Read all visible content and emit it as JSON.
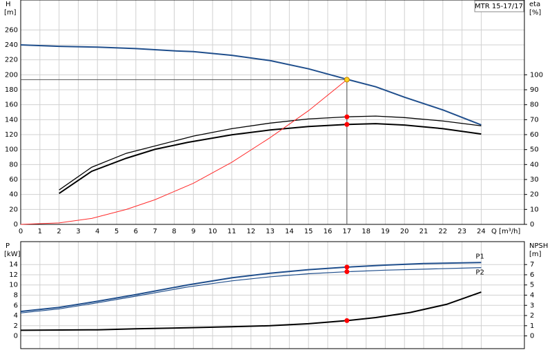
{
  "chart_data": [
    {
      "type": "line",
      "title": "MTR 15-17/17",
      "ylabel": "H",
      "ylabel_unit": "[m]",
      "y2label": "eta",
      "y2label_unit": "[%]",
      "xlabel": "Q [m³/h]",
      "xlim": [
        0,
        26.25
      ],
      "xticks": [
        0,
        1,
        2,
        3,
        4,
        5,
        6,
        7,
        8,
        9,
        10,
        11,
        12,
        13,
        14,
        15,
        16,
        17,
        18,
        19,
        20,
        21,
        22,
        23,
        24
      ],
      "ylim": [
        0,
        300
      ],
      "yticks": [
        0,
        20,
        40,
        60,
        80,
        100,
        120,
        140,
        160,
        180,
        200,
        220,
        240,
        260
      ],
      "y2lim": [
        0,
        150
      ],
      "y2ticks": [
        0,
        10,
        20,
        30,
        40,
        50,
        60,
        70,
        80,
        90,
        100
      ],
      "grid": true,
      "series": [
        {
          "color": "#1f4e8c",
          "width": 2,
          "x": [
            0,
            2,
            4,
            6,
            8,
            9,
            11,
            13,
            15,
            17,
            18.5,
            20,
            22,
            24
          ],
          "values": [
            240,
            238,
            237,
            235,
            232,
            231,
            226,
            219,
            208,
            194,
            184,
            170,
            153,
            133
          ]
        },
        {
          "color": "#000000",
          "width": 1.3,
          "axis": "y2",
          "x": [
            2,
            3.7,
            5.5,
            9,
            11,
            13,
            15,
            17,
            18.5,
            20,
            22,
            24
          ],
          "values": [
            23,
            38.2,
            47.5,
            59,
            64,
            67.7,
            70.5,
            71.9,
            72.4,
            71.4,
            69.1,
            65.9
          ]
        },
        {
          "color": "#000000",
          "width": 2,
          "axis": "y2",
          "x": [
            2,
            3.7,
            5.5,
            7,
            8.7,
            11,
            13,
            15,
            17,
            18.5,
            20,
            22,
            24
          ],
          "values": [
            20.7,
            35.5,
            44.2,
            50.2,
            54.8,
            59.9,
            63.1,
            65.4,
            66.8,
            67.3,
            66.4,
            64,
            60.4
          ]
        },
        {
          "color": "#ff2a2a",
          "width": 1,
          "x": [
            0,
            2,
            3.7,
            5.5,
            7,
            9,
            11,
            13,
            15,
            17
          ],
          "values": [
            0,
            2,
            8,
            20,
            33,
            55,
            83,
            116,
            152,
            193.5
          ]
        }
      ],
      "ref_lines": [
        {
          "x": 17,
          "value": 193.5
        }
      ],
      "points": [
        {
          "x": 17,
          "value": 193.5,
          "color": "#ffd21f"
        },
        {
          "x": 17,
          "value": 71.9,
          "axis": "y2",
          "color": "#ff0000"
        },
        {
          "x": 17,
          "value": 66.8,
          "axis": "y2",
          "color": "#ff0000"
        }
      ]
    },
    {
      "type": "line",
      "ylabel": "P",
      "ylabel_unit": "[kW]",
      "y2label": "NPSH",
      "y2label_unit": "[m]",
      "xlim": [
        0,
        26.25
      ],
      "xticks": [
        0,
        1,
        2,
        3,
        4,
        5,
        6,
        7,
        8,
        9,
        10,
        11,
        12,
        13,
        14,
        15,
        16,
        17,
        18,
        19,
        20,
        21,
        22,
        23,
        24
      ],
      "ylim": [
        -2.5,
        18.5
      ],
      "yticks": [
        0,
        2,
        4,
        6,
        8,
        10,
        12,
        14
      ],
      "y2lim": [
        -1.25,
        9.25
      ],
      "y2ticks": [
        0,
        1,
        2,
        3,
        4,
        5,
        6,
        7
      ],
      "grid": true,
      "series": [
        {
          "name": "P1",
          "color": "#1f4e8c",
          "width": 2,
          "x": [
            0,
            2,
            4,
            6,
            8.7,
            11,
            13,
            15,
            17,
            19,
            21,
            24
          ],
          "values": [
            4.8,
            5.6,
            6.8,
            8.1,
            10,
            11.4,
            12.3,
            13,
            13.5,
            13.9,
            14.2,
            14.4
          ]
        },
        {
          "name": "P2",
          "color": "#1f4e8c",
          "width": 1.2,
          "x": [
            0,
            2,
            4,
            6,
            8.7,
            11,
            13,
            15,
            17,
            19,
            21,
            24
          ],
          "values": [
            4.5,
            5.3,
            6.5,
            7.8,
            9.6,
            10.8,
            11.6,
            12.2,
            12.6,
            12.9,
            13.1,
            13.4
          ]
        },
        {
          "color": "#000000",
          "width": 2,
          "axis": "y2",
          "x": [
            0,
            4,
            6,
            8.7,
            11,
            13,
            15,
            17,
            18.5,
            20.3,
            22.2,
            24
          ],
          "values": [
            0.55,
            0.6,
            0.7,
            0.8,
            0.9,
            1,
            1.2,
            1.5,
            1.8,
            2.3,
            3.1,
            4.3
          ]
        }
      ],
      "points": [
        {
          "x": 17,
          "value": 13.5,
          "color": "#ff0000"
        },
        {
          "x": 17,
          "value": 12.6,
          "color": "#ff0000"
        },
        {
          "x": 17,
          "value": 1.5,
          "axis": "y2",
          "color": "#ff0000"
        }
      ]
    }
  ]
}
